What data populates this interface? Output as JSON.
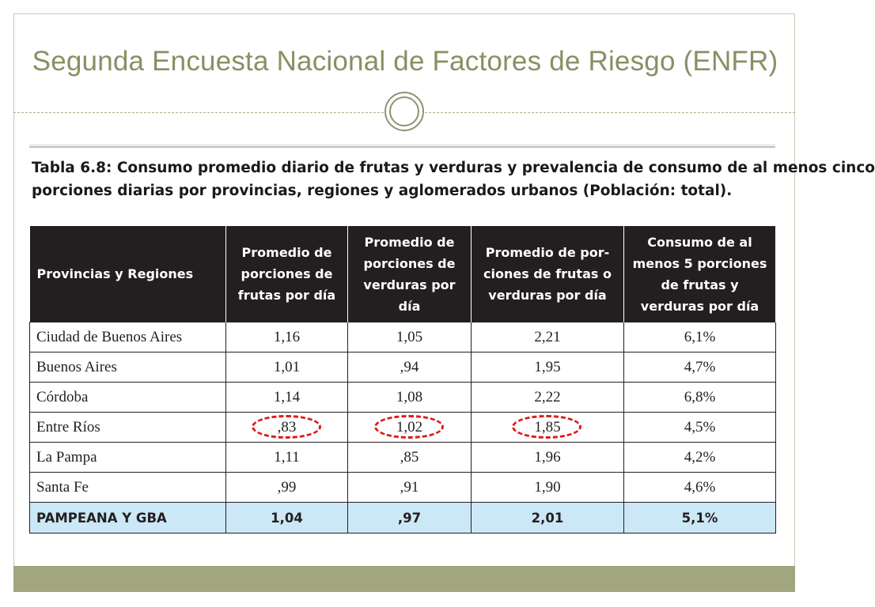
{
  "slide": {
    "title": "Segunda Encuesta Nacional de Factores de Riesgo (ENFR)"
  },
  "caption": {
    "line1": "Tabla 6.8: Consumo promedio diario de frutas y verduras y prevalencia de consumo de al menos cinco",
    "line2": "porciones diarias por provincias, regiones y aglomerados urbanos (Población: total)."
  },
  "table": {
    "headers": [
      "Provincias y Regiones",
      "Promedio de porciones de frutas por día",
      "Promedio de porciones de verduras por día",
      "Promedio de por-ciones de frutas o verduras por día",
      "Consumo de al menos 5 porciones de frutas y verduras por día"
    ],
    "rows": [
      {
        "region": "Ciudad de Buenos Aires",
        "frutas": "1,16",
        "verduras": "1,05",
        "frutas_o_verduras": "2,21",
        "consumo_5": "6,1%"
      },
      {
        "region": "Buenos Aires",
        "frutas": "1,01",
        "verduras": ",94",
        "frutas_o_verduras": "1,95",
        "consumo_5": "4,7%"
      },
      {
        "region": "Córdoba",
        "frutas": "1,14",
        "verduras": "1,08",
        "frutas_o_verduras": "2,22",
        "consumo_5": "6,8%"
      },
      {
        "region": "Entre Ríos",
        "frutas": ",83",
        "verduras": "1,02",
        "frutas_o_verduras": "1,85",
        "consumo_5": "4,5%"
      },
      {
        "region": "La Pampa",
        "frutas": "1,11",
        "verduras": ",85",
        "frutas_o_verduras": "1,96",
        "consumo_5": "4,2%"
      },
      {
        "region": "Santa Fe",
        "frutas": ",99",
        "verduras": ",91",
        "frutas_o_verduras": "1,90",
        "consumo_5": "4,6%"
      }
    ],
    "total": {
      "region": "PAMPEANA Y GBA",
      "frutas": "1,04",
      "verduras": ",97",
      "frutas_o_verduras": "2,01",
      "consumo_5": "5,1%"
    }
  },
  "theme": {
    "title_color": "#8a8f63",
    "footer_color": "#a1a67e",
    "header_bg": "#231f20",
    "total_row_bg": "#cce8f6",
    "highlight_circle_color": "#dd1b1b"
  }
}
